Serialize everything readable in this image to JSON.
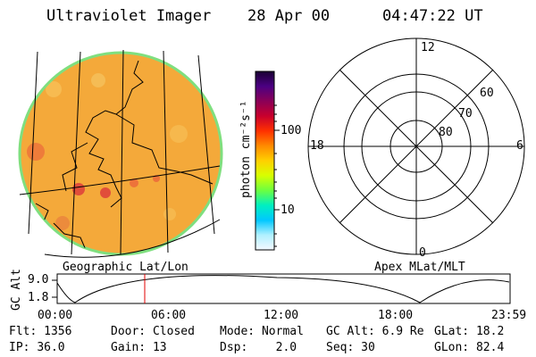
{
  "header": {
    "instrument": "Ultraviolet Imager",
    "date": "28 Apr 00",
    "time": "04:47:22 UT"
  },
  "colorbar": {
    "unit_label": "photon cm⁻²s⁻¹",
    "ticks": [
      "100",
      "10"
    ],
    "colors": [
      "#1a0033",
      "#4b0082",
      "#8b0057",
      "#c8002d",
      "#ff3000",
      "#ff8a00",
      "#ffd000",
      "#d8ff00",
      "#6cff40",
      "#00f0c0",
      "#00c8ff",
      "#b0f0ff",
      "#f4f8ff"
    ]
  },
  "image_panel": {
    "label": "Geographic Lat/Lon",
    "fill_color": "#f4a93a",
    "rim_color": "#7fdf7f"
  },
  "polar_panel": {
    "label": "Apex MLat/MLT",
    "mlt_labels": {
      "top": "12",
      "left": "18",
      "right": "6",
      "bottom": "0"
    },
    "lat_labels": [
      "60",
      "70",
      "80"
    ]
  },
  "altitude_plot": {
    "ylabel": "GC Alt",
    "y_ticks": [
      "9.0",
      "1.8"
    ],
    "x_ticks": [
      "00:00",
      "06:00",
      "12:00",
      "18:00",
      "23:59"
    ],
    "marker_color": "#e00000"
  },
  "info": {
    "row1": [
      {
        "key": "Flt:",
        "value": "1356"
      },
      {
        "key": "Door:",
        "value": "Closed"
      },
      {
        "key": "Mode:",
        "value": "Normal"
      },
      {
        "key": "GC Alt:",
        "value": "6.9 Re"
      },
      {
        "key": "GLat:",
        "value": "18.2"
      }
    ],
    "row2": [
      {
        "key": "IP:",
        "value": "36.0"
      },
      {
        "key": "Gain:",
        "value": "13"
      },
      {
        "key": "Dsp:",
        "value": "2.0"
      },
      {
        "key": "Seq:",
        "value": "30"
      },
      {
        "key": "GLon:",
        "value": "82.4"
      }
    ]
  }
}
